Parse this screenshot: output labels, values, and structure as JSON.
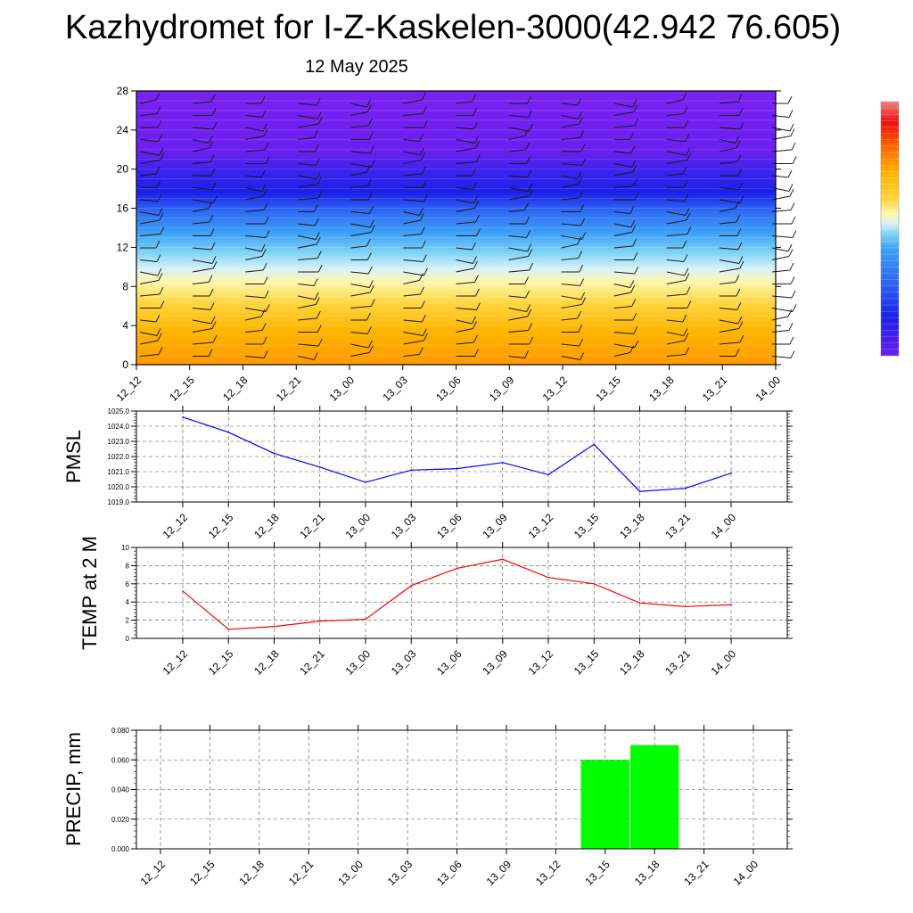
{
  "title": "Kazhydromet for I-Z-Kaskelen-3000(42.942 76.605)",
  "date": "12 May 2025",
  "time_labels": [
    "12_12",
    "12_15",
    "12_18",
    "12_21",
    "13_00",
    "13_03",
    "13_06",
    "13_09",
    "13_12",
    "13_15",
    "13_18",
    "13_21",
    "14_00"
  ],
  "chart_data": [
    {
      "type": "heatmap",
      "name": "cross-section",
      "x": [
        "12_12",
        "12_15",
        "12_18",
        "12_21",
        "13_00",
        "13_03",
        "13_06",
        "13_09",
        "13_12",
        "13_15",
        "13_18",
        "13_21",
        "14_00"
      ],
      "ylim": [
        0,
        28
      ],
      "yticks": [
        0,
        4,
        8,
        12,
        16,
        20,
        24,
        28
      ],
      "colorbar": true,
      "colormap": [
        "#6a1ff0",
        "#1c1fe8",
        "#2f6bf5",
        "#7fd3f5",
        "#fff6a8",
        "#ffd43b",
        "#ff9a00"
      ],
      "notes": "wind barbs overlaid"
    },
    {
      "type": "line",
      "ylabel": "PMSL",
      "categories": [
        "12_12",
        "12_15",
        "12_18",
        "12_21",
        "13_00",
        "13_03",
        "13_06",
        "13_09",
        "13_12",
        "13_15",
        "13_18",
        "13_21",
        "14_00"
      ],
      "values": [
        1024.6,
        1023.6,
        1022.2,
        1021.3,
        1020.3,
        1021.1,
        1021.2,
        1021.6,
        1020.8,
        1022.8,
        1019.7,
        1019.9,
        1020.9
      ],
      "ylim": [
        1019.0,
        1025.0
      ],
      "yticks": [
        "1019.0",
        "1020.0",
        "1021.0",
        "1022.0",
        "1023.0",
        "1024.0",
        "1025.0"
      ],
      "color": "#0000ff",
      "grid": true
    },
    {
      "type": "line",
      "ylabel": "TEMP at 2 M",
      "categories": [
        "12_12",
        "12_15",
        "12_18",
        "12_21",
        "13_00",
        "13_03",
        "13_06",
        "13_09",
        "13_12",
        "13_15",
        "13_18",
        "13_21",
        "14_00"
      ],
      "values": [
        5.2,
        1.0,
        1.3,
        1.9,
        2.1,
        5.8,
        7.7,
        8.7,
        6.7,
        6.0,
        3.9,
        3.5,
        3.7
      ],
      "ylim": [
        0,
        10
      ],
      "yticks": [
        "0",
        "2",
        "4",
        "6",
        "8",
        "10"
      ],
      "color": "#ff0000",
      "grid": true
    },
    {
      "type": "bar",
      "ylabel": "PRECIP, mm",
      "categories": [
        "12_12",
        "12_15",
        "12_18",
        "12_21",
        "13_00",
        "13_03",
        "13_06",
        "13_09",
        "13_12",
        "13_15",
        "13_18",
        "13_21",
        "14_00"
      ],
      "values": [
        0,
        0,
        0,
        0,
        0,
        0,
        0,
        0,
        0,
        0.06,
        0.07,
        0,
        0
      ],
      "ylim": [
        0,
        0.08
      ],
      "yticks": [
        "0.000",
        "0.020",
        "0.040",
        "0.060",
        "0.080"
      ],
      "color": "#00ff00",
      "grid": true
    }
  ]
}
